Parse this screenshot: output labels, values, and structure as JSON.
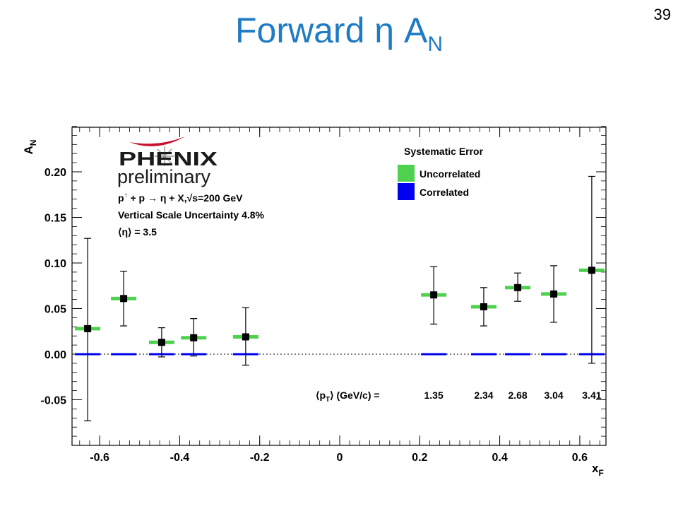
{
  "slide": {
    "title_main": "Forward η A",
    "title_sub": "N",
    "page_number": "39"
  },
  "logo": {
    "name": "PHENIX",
    "status": "preliminary"
  },
  "info": {
    "reaction_a": "p",
    "reaction_b": " + p → η + X,",
    "reaction_c": "s=200 GeV",
    "scale_uncertainty": "Vertical Scale Uncertainty 4.8%",
    "eta_mean": "⟨η⟩ = 3.5"
  },
  "legend": {
    "title": "Systematic Error",
    "uncorrelated": "Uncorrelated",
    "correlated": "Correlated"
  },
  "colors": {
    "uncorrelated": "#4fd14f",
    "correlated": "#0000ee",
    "points": "#000000",
    "title": "#1f7bc4"
  },
  "chart_data": {
    "type": "scatter",
    "title": "",
    "xlabel": "x",
    "xlabel_sub": "F",
    "ylabel": "A",
    "ylabel_sub": "N",
    "xlim": [
      -0.7,
      0.7
    ],
    "ylim": [
      -0.1,
      0.25
    ],
    "xticks": [
      -0.6,
      -0.4,
      -0.2,
      0,
      0.2,
      0.4,
      0.6
    ],
    "xtick_labels": [
      "-0.6",
      "-0.4",
      "-0.2",
      "0",
      "0.2",
      "0.4",
      "0.6"
    ],
    "yticks": [
      -0.05,
      0.0,
      0.05,
      0.1,
      0.15,
      0.2
    ],
    "ytick_labels": [
      "-0.05",
      "0.00",
      "0.05",
      "0.10",
      "0.15",
      "0.20"
    ],
    "grid": false,
    "zero_line": "dotted",
    "points": [
      {
        "x": -0.63,
        "y": 0.028,
        "err_low": 0.101,
        "err_high": 0.099
      },
      {
        "x": -0.54,
        "y": 0.061,
        "err_low": 0.03,
        "err_high": 0.03
      },
      {
        "x": -0.445,
        "y": 0.013,
        "err_low": 0.016,
        "err_high": 0.016
      },
      {
        "x": -0.365,
        "y": 0.018,
        "err_low": 0.02,
        "err_high": 0.021
      },
      {
        "x": -0.235,
        "y": 0.019,
        "err_low": 0.031,
        "err_high": 0.032
      },
      {
        "x": 0.235,
        "y": 0.065,
        "err_low": 0.032,
        "err_high": 0.031
      },
      {
        "x": 0.36,
        "y": 0.052,
        "err_low": 0.021,
        "err_high": 0.021
      },
      {
        "x": 0.445,
        "y": 0.073,
        "err_low": 0.015,
        "err_high": 0.016
      },
      {
        "x": 0.535,
        "y": 0.066,
        "err_low": 0.031,
        "err_high": 0.031
      },
      {
        "x": 0.63,
        "y": 0.092,
        "err_low": 0.102,
        "err_high": 0.103
      }
    ],
    "pt_label": "⟨p",
    "pt_label_sub": "T",
    "pt_label_tail": "⟩ (GeV/c) =",
    "pt_values": [
      {
        "x": 0.235,
        "label": "1.35"
      },
      {
        "x": 0.36,
        "label": "2.34"
      },
      {
        "x": 0.445,
        "label": "2.68"
      },
      {
        "x": 0.535,
        "label": "3.04"
      },
      {
        "x": 0.63,
        "label": "3.41"
      }
    ],
    "legend_position": "top-right"
  }
}
